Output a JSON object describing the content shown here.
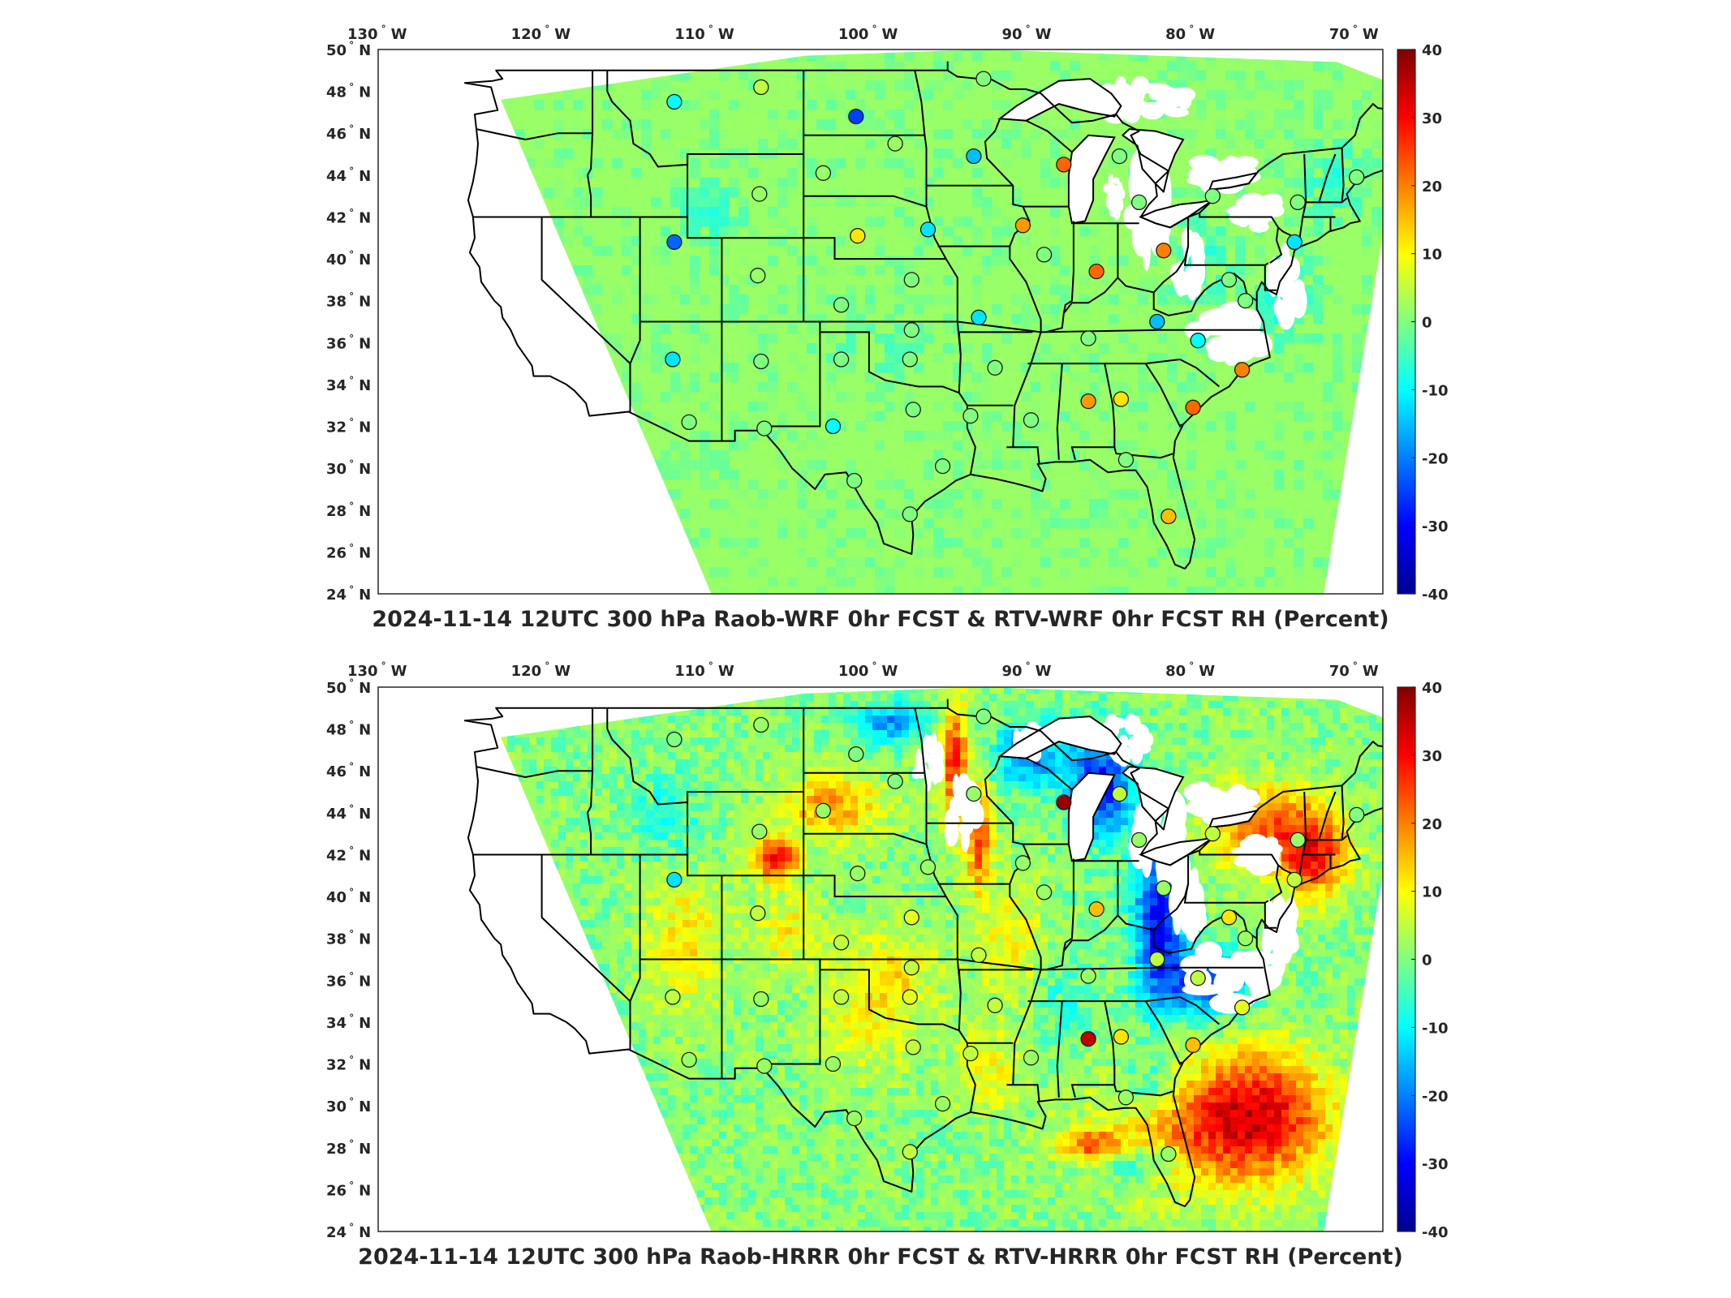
{
  "panels": [
    {
      "title": "2024-11-14 12UTC 300 hPa Raob-WRF 0hr FCST & RTV-WRF 0hr FCST RH (Percent)",
      "field_style": "smooth",
      "stations": [
        {
          "lon": -111.9,
          "lat": 47.5,
          "value": -10
        },
        {
          "lon": -106.6,
          "lat": 48.2,
          "value": 5
        },
        {
          "lon": -100.8,
          "lat": 46.8,
          "value": -25
        },
        {
          "lon": -93.0,
          "lat": 48.6,
          "value": 0
        },
        {
          "lon": -98.4,
          "lat": 45.5,
          "value": 2
        },
        {
          "lon": -93.6,
          "lat": 44.9,
          "value": -15
        },
        {
          "lon": -88.1,
          "lat": 44.5,
          "value": 22
        },
        {
          "lon": -84.7,
          "lat": 44.9,
          "value": 0
        },
        {
          "lon": -83.5,
          "lat": 42.7,
          "value": 0
        },
        {
          "lon": -79.0,
          "lat": 43.0,
          "value": 0
        },
        {
          "lon": -73.8,
          "lat": 42.7,
          "value": 0
        },
        {
          "lon": -70.2,
          "lat": 43.9,
          "value": 0
        },
        {
          "lon": -102.8,
          "lat": 44.1,
          "value": 2
        },
        {
          "lon": -106.7,
          "lat": 43.1,
          "value": 2
        },
        {
          "lon": -100.7,
          "lat": 41.1,
          "value": 12
        },
        {
          "lon": -96.4,
          "lat": 41.4,
          "value": -12
        },
        {
          "lon": -90.6,
          "lat": 41.6,
          "value": 18
        },
        {
          "lon": -89.3,
          "lat": 40.2,
          "value": 0
        },
        {
          "lon": -86.1,
          "lat": 39.4,
          "value": 22
        },
        {
          "lon": -82.0,
          "lat": 40.4,
          "value": 20
        },
        {
          "lon": -78.0,
          "lat": 39.0,
          "value": 0
        },
        {
          "lon": -74.0,
          "lat": 40.8,
          "value": -12
        },
        {
          "lon": -111.9,
          "lat": 40.8,
          "value": -22
        },
        {
          "lon": -106.8,
          "lat": 39.2,
          "value": 2
        },
        {
          "lon": -101.7,
          "lat": 37.8,
          "value": 0
        },
        {
          "lon": -97.4,
          "lat": 39.0,
          "value": 0
        },
        {
          "lon": -93.3,
          "lat": 37.2,
          "value": -12
        },
        {
          "lon": -86.6,
          "lat": 36.2,
          "value": 0
        },
        {
          "lon": -82.4,
          "lat": 37.0,
          "value": -15
        },
        {
          "lon": -79.9,
          "lat": 36.1,
          "value": -10
        },
        {
          "lon": -77.0,
          "lat": 38.0,
          "value": 0
        },
        {
          "lon": -112.0,
          "lat": 35.2,
          "value": -12
        },
        {
          "lon": -106.6,
          "lat": 35.1,
          "value": 0
        },
        {
          "lon": -101.7,
          "lat": 35.2,
          "value": 0
        },
        {
          "lon": -97.4,
          "lat": 36.6,
          "value": 0
        },
        {
          "lon": -97.5,
          "lat": 35.2,
          "value": 0
        },
        {
          "lon": -92.3,
          "lat": 34.8,
          "value": 0
        },
        {
          "lon": -86.6,
          "lat": 33.2,
          "value": 18
        },
        {
          "lon": -84.6,
          "lat": 33.3,
          "value": 12
        },
        {
          "lon": -80.2,
          "lat": 32.9,
          "value": 22
        },
        {
          "lon": -77.2,
          "lat": 34.7,
          "value": 20
        },
        {
          "lon": -111.0,
          "lat": 32.2,
          "value": 0
        },
        {
          "lon": -106.4,
          "lat": 31.9,
          "value": 0
        },
        {
          "lon": -102.2,
          "lat": 32.0,
          "value": -10
        },
        {
          "lon": -97.3,
          "lat": 32.8,
          "value": 0
        },
        {
          "lon": -93.8,
          "lat": 32.5,
          "value": 0
        },
        {
          "lon": -90.1,
          "lat": 32.3,
          "value": 0
        },
        {
          "lon": -95.5,
          "lat": 30.1,
          "value": 0
        },
        {
          "lon": -100.9,
          "lat": 29.4,
          "value": 0
        },
        {
          "lon": -97.5,
          "lat": 27.8,
          "value": 0
        },
        {
          "lon": -84.3,
          "lat": 30.4,
          "value": 0
        },
        {
          "lon": -81.7,
          "lat": 27.7,
          "value": 15
        }
      ]
    },
    {
      "title": "2024-11-14 12UTC 300 hPa Raob-HRRR 0hr FCST & RTV-HRRR 0hr FCST RH (Percent)",
      "field_style": "noisy",
      "stations": [
        {
          "lon": -111.9,
          "lat": 47.5,
          "value": 0
        },
        {
          "lon": -106.6,
          "lat": 48.2,
          "value": 2
        },
        {
          "lon": -100.8,
          "lat": 46.8,
          "value": 0
        },
        {
          "lon": -93.0,
          "lat": 48.6,
          "value": 0
        },
        {
          "lon": -98.4,
          "lat": 45.5,
          "value": 0
        },
        {
          "lon": -93.6,
          "lat": 44.9,
          "value": 2
        },
        {
          "lon": -88.1,
          "lat": 44.5,
          "value": 38
        },
        {
          "lon": -84.7,
          "lat": 44.9,
          "value": 5
        },
        {
          "lon": -83.5,
          "lat": 42.7,
          "value": 2
        },
        {
          "lon": -79.0,
          "lat": 43.0,
          "value": 5
        },
        {
          "lon": -73.8,
          "lat": 42.7,
          "value": 2
        },
        {
          "lon": -70.2,
          "lat": 43.9,
          "value": 0
        },
        {
          "lon": -102.8,
          "lat": 44.1,
          "value": 2
        },
        {
          "lon": -106.7,
          "lat": 43.1,
          "value": 2
        },
        {
          "lon": -100.7,
          "lat": 41.1,
          "value": 2
        },
        {
          "lon": -96.4,
          "lat": 41.4,
          "value": 2
        },
        {
          "lon": -90.6,
          "lat": 41.6,
          "value": 2
        },
        {
          "lon": -89.3,
          "lat": 40.2,
          "value": 2
        },
        {
          "lon": -86.1,
          "lat": 39.4,
          "value": 15
        },
        {
          "lon": -82.0,
          "lat": 40.4,
          "value": 2
        },
        {
          "lon": -78.0,
          "lat": 39.0,
          "value": 12
        },
        {
          "lon": -74.0,
          "lat": 40.8,
          "value": 5
        },
        {
          "lon": -111.9,
          "lat": 40.8,
          "value": -12
        },
        {
          "lon": -106.8,
          "lat": 39.2,
          "value": 5
        },
        {
          "lon": -101.7,
          "lat": 37.8,
          "value": 5
        },
        {
          "lon": -97.4,
          "lat": 39.0,
          "value": 8
        },
        {
          "lon": -93.3,
          "lat": 37.2,
          "value": 5
        },
        {
          "lon": -86.6,
          "lat": 36.2,
          "value": 2
        },
        {
          "lon": -82.4,
          "lat": 37.0,
          "value": 5
        },
        {
          "lon": -79.9,
          "lat": 36.1,
          "value": 5
        },
        {
          "lon": -77.0,
          "lat": 38.0,
          "value": 2
        },
        {
          "lon": -112.0,
          "lat": 35.2,
          "value": 5
        },
        {
          "lon": -106.6,
          "lat": 35.1,
          "value": 2
        },
        {
          "lon": -101.7,
          "lat": 35.2,
          "value": 5
        },
        {
          "lon": -97.4,
          "lat": 36.6,
          "value": 5
        },
        {
          "lon": -97.5,
          "lat": 35.2,
          "value": 8
        },
        {
          "lon": -92.3,
          "lat": 34.8,
          "value": 5
        },
        {
          "lon": -86.6,
          "lat": 33.2,
          "value": 35
        },
        {
          "lon": -84.6,
          "lat": 33.3,
          "value": 12
        },
        {
          "lon": -80.2,
          "lat": 32.9,
          "value": 15
        },
        {
          "lon": -77.2,
          "lat": 34.7,
          "value": 8
        },
        {
          "lon": -111.0,
          "lat": 32.2,
          "value": 2
        },
        {
          "lon": -106.4,
          "lat": 31.9,
          "value": 2
        },
        {
          "lon": -102.2,
          "lat": 32.0,
          "value": 2
        },
        {
          "lon": -97.3,
          "lat": 32.8,
          "value": 5
        },
        {
          "lon": -93.8,
          "lat": 32.5,
          "value": 5
        },
        {
          "lon": -90.1,
          "lat": 32.3,
          "value": 2
        },
        {
          "lon": -95.5,
          "lat": 30.1,
          "value": 2
        },
        {
          "lon": -100.9,
          "lat": 29.4,
          "value": 2
        },
        {
          "lon": -97.5,
          "lat": 27.8,
          "value": 5
        },
        {
          "lon": -84.3,
          "lat": 30.4,
          "value": 2
        },
        {
          "lon": -81.7,
          "lat": 27.7,
          "value": 2
        }
      ]
    }
  ],
  "lon_ticks": [
    {
      "value": -130,
      "label": "130",
      "hemi": "W"
    },
    {
      "value": -120,
      "label": "120",
      "hemi": "W"
    },
    {
      "value": -110,
      "label": "110",
      "hemi": "W"
    },
    {
      "value": -100,
      "label": "100",
      "hemi": "W"
    },
    {
      "value": -90,
      "label": "90",
      "hemi": "W"
    },
    {
      "value": -80,
      "label": "80",
      "hemi": "W"
    },
    {
      "value": -70,
      "label": "70",
      "hemi": "W"
    }
  ],
  "lat_ticks": [
    {
      "value": 50,
      "label": "50",
      "hemi": "N"
    },
    {
      "value": 48,
      "label": "48",
      "hemi": "N"
    },
    {
      "value": 46,
      "label": "46",
      "hemi": "N"
    },
    {
      "value": 44,
      "label": "44",
      "hemi": "N"
    },
    {
      "value": 42,
      "label": "42",
      "hemi": "N"
    },
    {
      "value": 40,
      "label": "40",
      "hemi": "N"
    },
    {
      "value": 38,
      "label": "38",
      "hemi": "N"
    },
    {
      "value": 36,
      "label": "36",
      "hemi": "N"
    },
    {
      "value": 34,
      "label": "34",
      "hemi": "N"
    },
    {
      "value": 32,
      "label": "32",
      "hemi": "N"
    },
    {
      "value": 30,
      "label": "30",
      "hemi": "N"
    },
    {
      "value": 28,
      "label": "28",
      "hemi": "N"
    },
    {
      "value": 26,
      "label": "26",
      "hemi": "N"
    },
    {
      "value": 24,
      "label": "24",
      "hemi": "N"
    }
  ],
  "colorbar": {
    "min": -40,
    "max": 40,
    "ticks": [
      "40",
      "30",
      "20",
      "10",
      "0",
      "-10",
      "-20",
      "-30",
      "-40"
    ],
    "colormap": "jet"
  }
}
